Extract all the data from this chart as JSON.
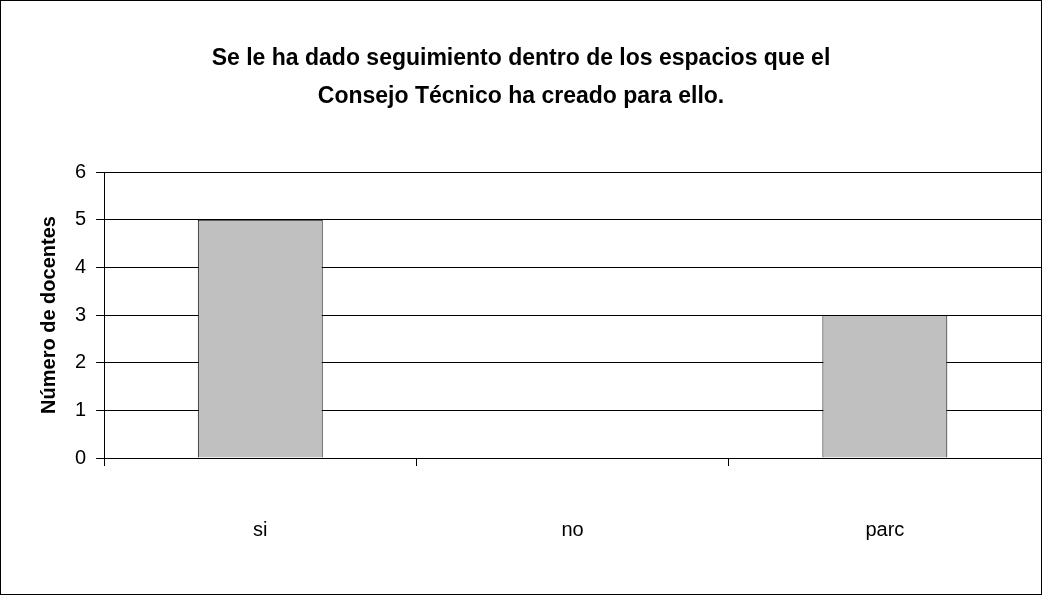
{
  "chart_data": {
    "type": "bar",
    "title": "Se le ha dado seguimiento dentro de los espacios que el Consejo Técnico ha creado para ello.",
    "ylabel": "Número de docentes",
    "categories": [
      "si",
      "no",
      "parc"
    ],
    "values": [
      5,
      0,
      3
    ],
    "color": "#c0c0c0",
    "ylim": [
      0,
      6
    ],
    "yticks": [
      0,
      1,
      2,
      3,
      4,
      5,
      6
    ],
    "grid": "y"
  }
}
